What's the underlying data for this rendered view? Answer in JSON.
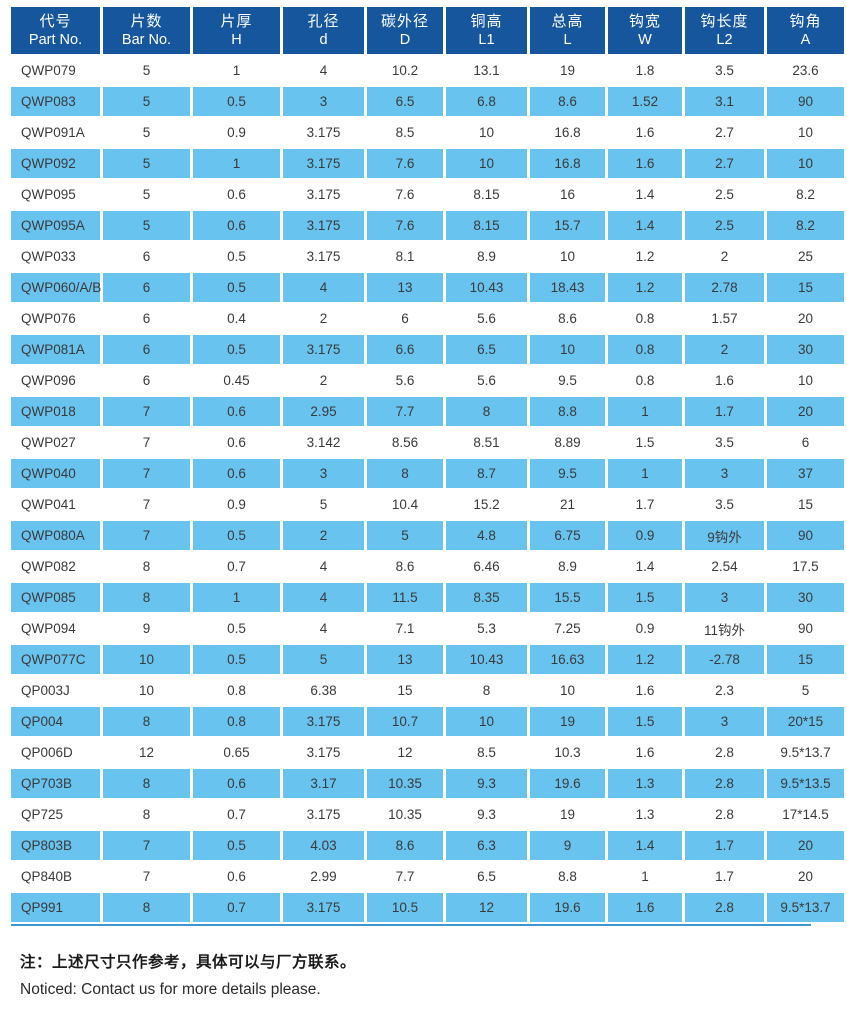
{
  "table": {
    "columns": [
      {
        "zh": "代号",
        "en": "Part No."
      },
      {
        "zh": "片数",
        "en": "Bar No."
      },
      {
        "zh": "片厚",
        "en": "H"
      },
      {
        "zh": "孔径",
        "en": "d"
      },
      {
        "zh": "碳外径",
        "en": "D"
      },
      {
        "zh": "铜高",
        "en": "L1"
      },
      {
        "zh": "总高",
        "en": "L"
      },
      {
        "zh": "钩宽",
        "en": "W"
      },
      {
        "zh": "钩长度",
        "en": "L2"
      },
      {
        "zh": "钩角",
        "en": "A"
      }
    ],
    "rows": [
      [
        "QWP079",
        "5",
        "1",
        "4",
        "10.2",
        "13.1",
        "19",
        "1.8",
        "3.5",
        "23.6"
      ],
      [
        "QWP083",
        "5",
        "0.5",
        "3",
        "6.5",
        "6.8",
        "8.6",
        "1.52",
        "3.1",
        "90"
      ],
      [
        "QWP091A",
        "5",
        "0.9",
        "3.175",
        "8.5",
        "10",
        "16.8",
        "1.6",
        "2.7",
        "10"
      ],
      [
        "QWP092",
        "5",
        "1",
        "3.175",
        "7.6",
        "10",
        "16.8",
        "1.6",
        "2.7",
        "10"
      ],
      [
        "QWP095",
        "5",
        "0.6",
        "3.175",
        "7.6",
        "8.15",
        "16",
        "1.4",
        "2.5",
        "8.2"
      ],
      [
        "QWP095A",
        "5",
        "0.6",
        "3.175",
        "7.6",
        "8.15",
        "15.7",
        "1.4",
        "2.5",
        "8.2"
      ],
      [
        "QWP033",
        "6",
        "0.5",
        "3.175",
        "8.1",
        "8.9",
        "10",
        "1.2",
        "2",
        "25"
      ],
      [
        "QWP060/A/B",
        "6",
        "0.5",
        "4",
        "13",
        "10.43",
        "18.43",
        "1.2",
        "2.78",
        "15"
      ],
      [
        "QWP076",
        "6",
        "0.4",
        "2",
        "6",
        "5.6",
        "8.6",
        "0.8",
        "1.57",
        "20"
      ],
      [
        "QWP081A",
        "6",
        "0.5",
        "3.175",
        "6.6",
        "6.5",
        "10",
        "0.8",
        "2",
        "30"
      ],
      [
        "QWP096",
        "6",
        "0.45",
        "2",
        "5.6",
        "5.6",
        "9.5",
        "0.8",
        "1.6",
        "10"
      ],
      [
        "QWP018",
        "7",
        "0.6",
        "2.95",
        "7.7",
        "8",
        "8.8",
        "1",
        "1.7",
        "20"
      ],
      [
        "QWP027",
        "7",
        "0.6",
        "3.142",
        "8.56",
        "8.51",
        "8.89",
        "1.5",
        "3.5",
        "6"
      ],
      [
        "QWP040",
        "7",
        "0.6",
        "3",
        "8",
        "8.7",
        "9.5",
        "1",
        "3",
        "37"
      ],
      [
        "QWP041",
        "7",
        "0.9",
        "5",
        "10.4",
        "15.2",
        "21",
        "1.7",
        "3.5",
        "15"
      ],
      [
        "QWP080A",
        "7",
        "0.5",
        "2",
        "5",
        "4.8",
        "6.75",
        "0.9",
        "9钩外",
        "90"
      ],
      [
        "QWP082",
        "8",
        "0.7",
        "4",
        "8.6",
        "6.46",
        "8.9",
        "1.4",
        "2.54",
        "17.5"
      ],
      [
        "QWP085",
        "8",
        "1",
        "4",
        "11.5",
        "8.35",
        "15.5",
        "1.5",
        "3",
        "30"
      ],
      [
        "QWP094",
        "9",
        "0.5",
        "4",
        "7.1",
        "5.3",
        "7.25",
        "0.9",
        "11钩外",
        "90"
      ],
      [
        "QWP077C",
        "10",
        "0.5",
        "5",
        "13",
        "10.43",
        "16.63",
        "1.2",
        "-2.78",
        "15"
      ],
      [
        "QP003J",
        "10",
        "0.8",
        "6.38",
        "15",
        "8",
        "10",
        "1.6",
        "2.3",
        "5"
      ],
      [
        "QP004",
        "8",
        "0.8",
        "3.175",
        "10.7",
        "10",
        "19",
        "1.5",
        "3",
        "20*15"
      ],
      [
        "QP006D",
        "12",
        "0.65",
        "3.175",
        "12",
        "8.5",
        "10.3",
        "1.6",
        "2.8",
        "9.5*13.7"
      ],
      [
        "QP703B",
        "8",
        "0.6",
        "3.17",
        "10.35",
        "9.3",
        "19.6",
        "1.3",
        "2.8",
        "9.5*13.5"
      ],
      [
        "QP725",
        "8",
        "0.7",
        "3.175",
        "10.35",
        "9.3",
        "19",
        "1.3",
        "2.8",
        "17*14.5"
      ],
      [
        "QP803B",
        "7",
        "0.5",
        "4.03",
        "8.6",
        "6.3",
        "9",
        "1.4",
        "1.7",
        "20"
      ],
      [
        "QP840B",
        "7",
        "0.6",
        "2.99",
        "7.7",
        "6.5",
        "8.8",
        "1",
        "1.7",
        "20"
      ],
      [
        "QP991",
        "8",
        "0.7",
        "3.175",
        "10.5",
        "12",
        "19.6",
        "1.6",
        "2.8",
        "9.5*13.7"
      ]
    ]
  },
  "notes": {
    "zh": "注：上述尺寸只作参考，具体可以与厂方联系。",
    "en": "Noticed: Contact us for more details please."
  },
  "colors": {
    "header_bg": "#15569c",
    "row_alt_bg": "#68c3ee",
    "header_text": "#ffffff",
    "body_text": "#3a3a3a",
    "bottom_rule": "#4096cc"
  }
}
